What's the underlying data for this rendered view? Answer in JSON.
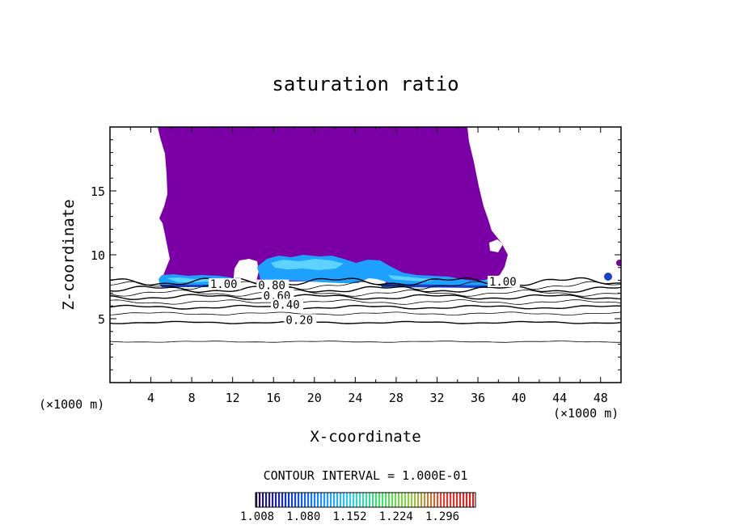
{
  "chart_data": {
    "type": "contour",
    "title": "saturation ratio",
    "xlabel": "X-coordinate",
    "ylabel": "Z-coordinate",
    "x_unit_left": "(×1000 m)",
    "x_unit_right": "(×1000 m)",
    "xlim": [
      0,
      50
    ],
    "ylim": [
      0,
      20
    ],
    "xticks": [
      4,
      8,
      12,
      16,
      20,
      24,
      28,
      32,
      36,
      40,
      44,
      48
    ],
    "yticks": [
      5,
      10,
      15
    ],
    "contour_interval_label": "CONTOUR INTERVAL = 1.000E-01",
    "contour_lines": [
      {
        "level": 0.1,
        "z": 3.2
      },
      {
        "level": 0.2,
        "z": 4.7
      },
      {
        "level": 0.3,
        "z": 5.4
      },
      {
        "level": 0.4,
        "z": 5.9
      },
      {
        "level": 0.5,
        "z": 6.3
      },
      {
        "level": 0.6,
        "z": 6.7
      },
      {
        "level": 0.7,
        "z": 7.0
      },
      {
        "level": 0.8,
        "z": 7.3
      },
      {
        "level": 0.9,
        "z": 7.6
      },
      {
        "level": 1.0,
        "z": 7.9
      }
    ],
    "contour_labels": [
      {
        "text": "1.00",
        "x": 9.8,
        "z": 7.4
      },
      {
        "text": "0.80",
        "x": 14.5,
        "z": 7.3
      },
      {
        "text": "0.60",
        "x": 15.0,
        "z": 6.5
      },
      {
        "text": "0.40",
        "x": 15.9,
        "z": 5.8
      },
      {
        "text": "0.20",
        "x": 17.2,
        "z": 4.6
      },
      {
        "text": "1.00",
        "x": 37.1,
        "z": 7.6
      }
    ],
    "colorbar": {
      "ticks": [
        "1.008",
        "1.080",
        "1.152",
        "1.224",
        "1.296"
      ],
      "min": 1.008,
      "max": 1.35,
      "colors": [
        "#2a0a55",
        "#1133cc",
        "#1a8aff",
        "#33ccee",
        "#44dd66",
        "#99cc44",
        "#dd4433",
        "#cc2222"
      ]
    },
    "fill_colors": {
      "cloud": "#7a00a6",
      "layer_bright": "#1ea0ff",
      "layer_light": "#5fd3ff",
      "layer_dark": "#1840c8"
    }
  }
}
